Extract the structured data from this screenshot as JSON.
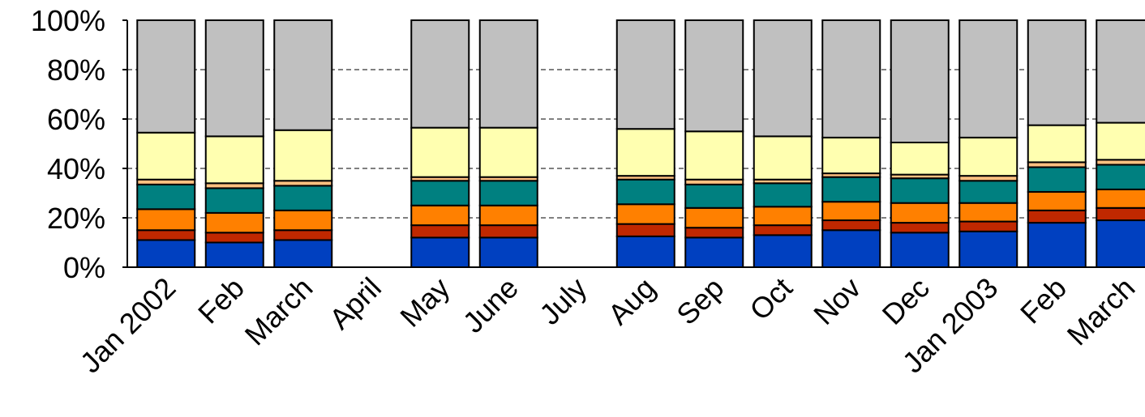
{
  "chart_data": {
    "type": "bar",
    "stacked": true,
    "normalized_percent": true,
    "categories": [
      "Jan 2002",
      "Feb",
      "March",
      "April",
      "May",
      "June",
      "July",
      "Aug",
      "Sep",
      "Oct",
      "Nov",
      "Dec",
      "Jan 2003",
      "Feb",
      "March"
    ],
    "series": [
      {
        "color": "#0040c0",
        "values": [
          11,
          10,
          11,
          null,
          12,
          12,
          null,
          12.5,
          12,
          13,
          15,
          14,
          14.5,
          18,
          19
        ]
      },
      {
        "color": "#c02800",
        "values": [
          4,
          4,
          4,
          null,
          5,
          5,
          null,
          5,
          4,
          4,
          4,
          4,
          4,
          5,
          5
        ]
      },
      {
        "color": "#ff8000",
        "values": [
          8.5,
          8,
          8,
          null,
          8,
          8,
          null,
          8,
          8,
          7.5,
          7.5,
          8,
          7.5,
          7.5,
          7.5
        ]
      },
      {
        "color": "#008080",
        "values": [
          10,
          10,
          10,
          null,
          10,
          10,
          null,
          10,
          9.5,
          9.5,
          10,
          10,
          9,
          10,
          10
        ]
      },
      {
        "color": "#ffc080",
        "values": [
          2,
          2,
          2,
          null,
          1.5,
          1.5,
          null,
          1.5,
          2,
          1.5,
          1.5,
          1.5,
          2,
          2,
          2
        ]
      },
      {
        "color": "#ffffb0",
        "values": [
          19,
          19,
          20.5,
          null,
          20,
          20,
          null,
          19,
          19.5,
          17.5,
          14.5,
          13,
          15.5,
          15,
          15
        ]
      },
      {
        "color": "#c0c0c0",
        "values": [
          45.5,
          47,
          44.5,
          null,
          43.5,
          43.5,
          null,
          44,
          45,
          47,
          47.5,
          49.5,
          47.5,
          42.5,
          41.5
        ]
      }
    ],
    "yticks": [
      "0%",
      "20%",
      "40%",
      "60%",
      "80%",
      "100%"
    ],
    "ylim": [
      0,
      100
    ],
    "grid": true
  }
}
